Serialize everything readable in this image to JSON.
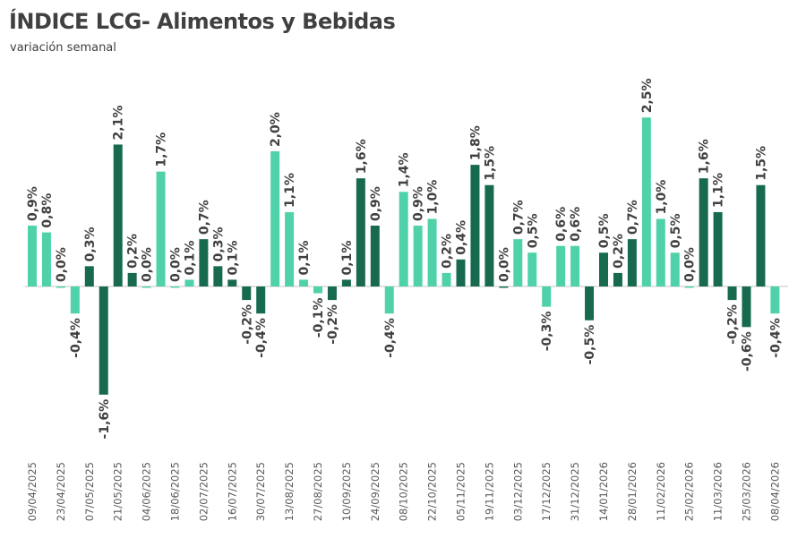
{
  "chart_data": {
    "type": "bar",
    "title": "ÍNDICE LCG- Alimentos y Bebidas",
    "subtitle": "variación semanal",
    "xlabel": "",
    "ylabel": "",
    "grid": false,
    "legend": "none",
    "ylim": [
      -2.0,
      2.7
    ],
    "colors": {
      "light": "#4fd1a9",
      "dark": "#17694f",
      "zero_line": "#d9d9d9"
    },
    "tick_labels": [
      "09/04/2025",
      "23/04/2025",
      "07/05/2025",
      "21/05/2025",
      "04/06/2025",
      "18/06/2025",
      "02/07/2025",
      "16/07/2025",
      "30/07/2025",
      "13/08/2025",
      "27/08/2025",
      "10/09/2025",
      "24/09/2025",
      "08/10/2025",
      "22/10/2025",
      "05/11/2025",
      "19/11/2025",
      "03/12/2025",
      "17/12/2025",
      "31/12/2025",
      "14/01/2026",
      "28/01/2026",
      "11/02/2026",
      "25/02/2026",
      "11/03/2026",
      "25/03/2026",
      "08/04/2026"
    ],
    "values": [
      0.9,
      0.8,
      0.0,
      -0.4,
      0.3,
      -1.6,
      2.1,
      0.2,
      0.0,
      1.7,
      0.0,
      0.1,
      0.7,
      0.3,
      0.1,
      -0.2,
      -0.4,
      2.0,
      1.1,
      0.1,
      -0.1,
      -0.2,
      0.1,
      1.6,
      0.9,
      -0.4,
      1.4,
      0.9,
      1.0,
      0.2,
      0.4,
      1.8,
      1.5,
      0.0,
      0.7,
      0.5,
      -0.3,
      0.6,
      0.6,
      -0.5,
      0.5,
      0.2,
      0.7,
      2.5,
      1.0,
      0.5,
      0.0,
      1.6,
      1.1,
      -0.2,
      -0.6,
      1.5,
      -0.4
    ],
    "bar_shades": [
      "light",
      "light",
      "light",
      "light",
      "dark",
      "dark",
      "dark",
      "dark",
      "light",
      "light",
      "light",
      "light",
      "dark",
      "dark",
      "dark",
      "dark",
      "dark",
      "light",
      "light",
      "light",
      "light",
      "dark",
      "dark",
      "dark",
      "dark",
      "light",
      "light",
      "light",
      "light",
      "light",
      "dark",
      "dark",
      "dark",
      "dark",
      "light",
      "light",
      "light",
      "light",
      "light",
      "dark",
      "dark",
      "dark",
      "dark",
      "light",
      "light",
      "light",
      "light",
      "dark",
      "dark",
      "dark",
      "dark",
      "dark",
      "light"
    ],
    "data_labels": [
      "0,9%",
      "0,8%",
      "0,0%",
      "-0,4%",
      "0,3%",
      "-1,6%",
      "2,1%",
      "0,2%",
      "0,0%",
      "1,7%",
      "0,0%",
      "0,1%",
      "0,7%",
      "0,3%",
      "0,1%",
      "-0,2%",
      "-0,4%",
      "2,0%",
      "1,1%",
      "0,1%",
      "-0,1%",
      "-0,2%",
      "0,1%",
      "1,6%",
      "0,9%",
      "-0,4%",
      "1,4%",
      "0,9%",
      "1,0%",
      "0,2%",
      "0,4%",
      "1,8%",
      "1,5%",
      "0,0%",
      "0,7%",
      "0,5%",
      "-0,3%",
      "0,6%",
      "0,6%",
      "-0,5%",
      "0,5%",
      "0,2%",
      "0,7%",
      "2,5%",
      "1,0%",
      "0,5%",
      "0,0%",
      "1,6%",
      "1,1%",
      "-0,2%",
      "-0,6%",
      "1,5%",
      "-0,4%"
    ]
  }
}
